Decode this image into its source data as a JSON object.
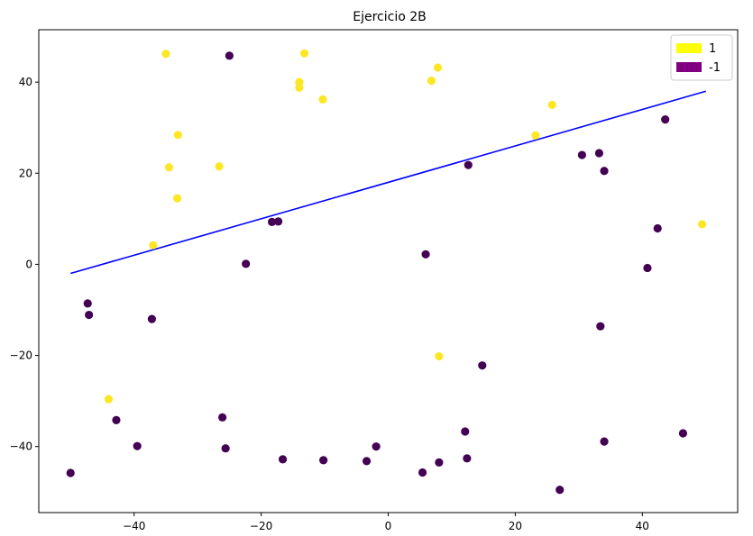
{
  "chart_data": {
    "type": "scatter",
    "title": "Ejercicio 2B",
    "xlabel": "",
    "ylabel": "",
    "xlim": [
      -55,
      55
    ],
    "ylim": [
      -54.5,
      51.5
    ],
    "xticks": [
      -40,
      -20,
      0,
      20,
      40
    ],
    "yticks": [
      -40,
      -20,
      0,
      20,
      40
    ],
    "grid": false,
    "legend_position": "top-right",
    "legend": [
      {
        "label": "1",
        "color": "#ffff00"
      },
      {
        "label": "-1",
        "color": "#800080"
      }
    ],
    "series": [
      {
        "class": "1",
        "color": "#fde725",
        "points": [
          [
            -35,
            46.2
          ],
          [
            -13.2,
            46.3
          ],
          [
            7.8,
            43.2
          ],
          [
            -14,
            40
          ],
          [
            -14,
            38.8
          ],
          [
            6.8,
            40.3
          ],
          [
            -10.3,
            36.2
          ],
          [
            25.8,
            35
          ],
          [
            -33.1,
            28.4
          ],
          [
            23.2,
            28.3
          ],
          [
            -34.5,
            21.3
          ],
          [
            -26.6,
            21.5
          ],
          [
            -33.2,
            14.5
          ],
          [
            -37,
            4.2
          ],
          [
            49.4,
            8.8
          ],
          [
            8,
            -20.2
          ],
          [
            -44,
            -29.6
          ]
        ]
      },
      {
        "class": "-1",
        "color": "#440154",
        "points": [
          [
            -25,
            45.8
          ],
          [
            43.6,
            31.8
          ],
          [
            30.5,
            24
          ],
          [
            33.2,
            24.4
          ],
          [
            34,
            20.5
          ],
          [
            12.6,
            21.8
          ],
          [
            -18.3,
            9.3
          ],
          [
            -17.3,
            9.4
          ],
          [
            42.4,
            7.9
          ],
          [
            -22.4,
            0.1
          ],
          [
            5.9,
            2.2
          ],
          [
            40.8,
            -0.8
          ],
          [
            -47.3,
            -8.6
          ],
          [
            -47.1,
            -11.1
          ],
          [
            -37.2,
            -12
          ],
          [
            33.4,
            -13.6
          ],
          [
            14.8,
            -22.2
          ],
          [
            -42.8,
            -34.2
          ],
          [
            -26.1,
            -33.6
          ],
          [
            -39.5,
            -39.9
          ],
          [
            -25.6,
            -40.4
          ],
          [
            12.1,
            -36.7
          ],
          [
            34,
            -38.9
          ],
          [
            46.4,
            -37.1
          ],
          [
            -16.6,
            -42.8
          ],
          [
            -10.2,
            -43
          ],
          [
            -1.9,
            -40
          ],
          [
            -3.4,
            -43.2
          ],
          [
            8,
            -43.5
          ],
          [
            12.4,
            -42.6
          ],
          [
            5.4,
            -45.7
          ],
          [
            27,
            -49.5
          ],
          [
            -50,
            -45.8
          ]
        ]
      }
    ],
    "line": {
      "color": "#0000ff",
      "points": [
        [
          -50,
          -2
        ],
        [
          50,
          38
        ]
      ]
    }
  }
}
